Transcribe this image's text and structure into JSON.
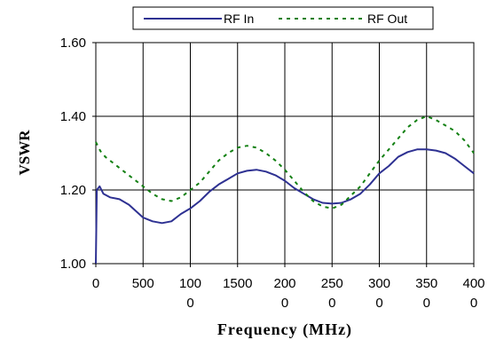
{
  "chart_data": {
    "type": "line",
    "title": "",
    "xlabel": "Frequency (MHz)",
    "ylabel": "VSWR",
    "xlim": [
      0,
      4000
    ],
    "ylim": [
      1.0,
      1.6
    ],
    "grid": true,
    "legend_position": "top",
    "x_tick_labels": [
      {
        "value": 0,
        "lines": [
          "0"
        ]
      },
      {
        "value": 500,
        "lines": [
          "500"
        ]
      },
      {
        "value": 1000,
        "lines": [
          "100",
          "0"
        ]
      },
      {
        "value": 1500,
        "lines": [
          "1500"
        ]
      },
      {
        "value": 2000,
        "lines": [
          "200",
          "0"
        ]
      },
      {
        "value": 2500,
        "lines": [
          "250",
          "0"
        ]
      },
      {
        "value": 3000,
        "lines": [
          "300",
          "0"
        ]
      },
      {
        "value": 3500,
        "lines": [
          "350",
          "0"
        ]
      },
      {
        "value": 4000,
        "lines": [
          "400",
          "0"
        ]
      }
    ],
    "y_tick_labels": [
      {
        "value": 1.0,
        "label": "1.00"
      },
      {
        "value": 1.2,
        "label": "1.20"
      },
      {
        "value": 1.4,
        "label": "1.40"
      },
      {
        "value": 1.6,
        "label": "1.60"
      }
    ],
    "series": [
      {
        "name": "RF In",
        "color": "#2e3192",
        "style": "solid",
        "points": [
          [
            0,
            1.0
          ],
          [
            10,
            1.2
          ],
          [
            40,
            1.21
          ],
          [
            80,
            1.19
          ],
          [
            150,
            1.18
          ],
          [
            250,
            1.175
          ],
          [
            350,
            1.16
          ],
          [
            500,
            1.125
          ],
          [
            600,
            1.115
          ],
          [
            700,
            1.11
          ],
          [
            800,
            1.115
          ],
          [
            900,
            1.135
          ],
          [
            1000,
            1.15
          ],
          [
            1100,
            1.17
          ],
          [
            1200,
            1.195
          ],
          [
            1300,
            1.215
          ],
          [
            1400,
            1.23
          ],
          [
            1500,
            1.245
          ],
          [
            1600,
            1.252
          ],
          [
            1700,
            1.255
          ],
          [
            1800,
            1.25
          ],
          [
            1900,
            1.24
          ],
          [
            2000,
            1.225
          ],
          [
            2100,
            1.205
          ],
          [
            2200,
            1.19
          ],
          [
            2300,
            1.175
          ],
          [
            2400,
            1.165
          ],
          [
            2500,
            1.163
          ],
          [
            2600,
            1.165
          ],
          [
            2700,
            1.175
          ],
          [
            2800,
            1.19
          ],
          [
            2900,
            1.215
          ],
          [
            3000,
            1.245
          ],
          [
            3100,
            1.265
          ],
          [
            3200,
            1.29
          ],
          [
            3300,
            1.303
          ],
          [
            3400,
            1.31
          ],
          [
            3500,
            1.31
          ],
          [
            3600,
            1.307
          ],
          [
            3700,
            1.3
          ],
          [
            3800,
            1.285
          ],
          [
            3900,
            1.265
          ],
          [
            4000,
            1.245
          ]
        ]
      },
      {
        "name": "RF Out",
        "color": "#138013",
        "style": "dashed",
        "points": [
          [
            0,
            1.33
          ],
          [
            50,
            1.305
          ],
          [
            100,
            1.29
          ],
          [
            200,
            1.27
          ],
          [
            300,
            1.25
          ],
          [
            400,
            1.23
          ],
          [
            500,
            1.21
          ],
          [
            600,
            1.19
          ],
          [
            700,
            1.175
          ],
          [
            800,
            1.17
          ],
          [
            900,
            1.18
          ],
          [
            1000,
            1.2
          ],
          [
            1100,
            1.22
          ],
          [
            1200,
            1.25
          ],
          [
            1300,
            1.28
          ],
          [
            1400,
            1.3
          ],
          [
            1500,
            1.315
          ],
          [
            1600,
            1.32
          ],
          [
            1700,
            1.315
          ],
          [
            1800,
            1.3
          ],
          [
            1900,
            1.28
          ],
          [
            2000,
            1.255
          ],
          [
            2100,
            1.225
          ],
          [
            2200,
            1.195
          ],
          [
            2300,
            1.17
          ],
          [
            2400,
            1.155
          ],
          [
            2500,
            1.15
          ],
          [
            2600,
            1.16
          ],
          [
            2700,
            1.185
          ],
          [
            2800,
            1.21
          ],
          [
            2900,
            1.245
          ],
          [
            3000,
            1.28
          ],
          [
            3100,
            1.31
          ],
          [
            3200,
            1.34
          ],
          [
            3300,
            1.37
          ],
          [
            3400,
            1.39
          ],
          [
            3500,
            1.4
          ],
          [
            3600,
            1.39
          ],
          [
            3700,
            1.375
          ],
          [
            3800,
            1.36
          ],
          [
            3900,
            1.335
          ],
          [
            4000,
            1.3
          ]
        ]
      }
    ]
  }
}
